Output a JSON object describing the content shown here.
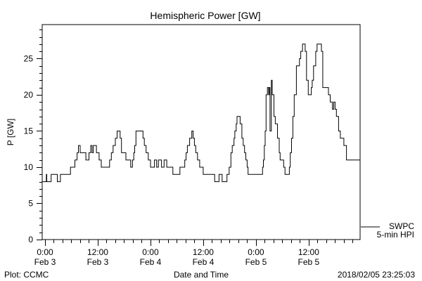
{
  "chart_data": {
    "type": "line",
    "title": "Hemispheric Power [GW]",
    "xlabel": "Date and Time",
    "ylabel": "P [GW]",
    "x_units": "hours since 2018-02-03 00:00",
    "xlim": [
      -0.64,
      71.7
    ],
    "ylim": [
      0,
      29.7
    ],
    "yticks": [
      0,
      5,
      10,
      15,
      20,
      25
    ],
    "xticks": [
      {
        "x": 0,
        "time": "0:00",
        "date": "Feb 3"
      },
      {
        "x": 12,
        "time": "12:00",
        "date": "Feb 3"
      },
      {
        "x": 24,
        "time": "0:00",
        "date": "Feb 4"
      },
      {
        "x": 36,
        "time": "12:00",
        "date": "Feb 4"
      },
      {
        "x": 48,
        "time": "0:00",
        "date": "Feb 5"
      },
      {
        "x": 60,
        "time": "12:00",
        "date": "Feb 5"
      }
    ],
    "legend": {
      "placement": "bottom-right outside",
      "line1": "SWPC",
      "line2": "5-min HPI"
    },
    "series": [
      {
        "name": "SWPC 5-min HPI",
        "step": true,
        "points": [
          [
            0,
            8
          ],
          [
            0.3,
            9
          ],
          [
            0.4,
            8
          ],
          [
            1.4,
            9
          ],
          [
            2.8,
            8
          ],
          [
            3.5,
            9
          ],
          [
            5.8,
            10
          ],
          [
            6.8,
            11
          ],
          [
            7.3,
            12
          ],
          [
            7.6,
            13
          ],
          [
            8.0,
            12
          ],
          [
            9.3,
            11
          ],
          [
            10.0,
            12
          ],
          [
            10.4,
            13
          ],
          [
            10.7,
            12
          ],
          [
            11.0,
            13
          ],
          [
            11.7,
            12
          ],
          [
            12.3,
            11
          ],
          [
            12.8,
            10
          ],
          [
            14.7,
            11
          ],
          [
            15.1,
            12
          ],
          [
            15.5,
            13
          ],
          [
            16.0,
            14
          ],
          [
            16.4,
            15
          ],
          [
            17.1,
            14
          ],
          [
            17.4,
            12
          ],
          [
            18.4,
            11
          ],
          [
            19.5,
            10
          ],
          [
            19.9,
            11
          ],
          [
            20.2,
            12
          ],
          [
            20.4,
            13
          ],
          [
            20.7,
            15
          ],
          [
            22.3,
            14
          ],
          [
            22.6,
            13
          ],
          [
            23.0,
            12
          ],
          [
            23.5,
            11
          ],
          [
            24.0,
            10
          ],
          [
            24.9,
            11
          ],
          [
            25.4,
            10
          ],
          [
            25.8,
            11
          ],
          [
            26.5,
            10
          ],
          [
            27.1,
            11
          ],
          [
            27.7,
            10
          ],
          [
            29.1,
            9
          ],
          [
            30.7,
            10
          ],
          [
            31.8,
            11
          ],
          [
            32.1,
            12
          ],
          [
            32.4,
            13
          ],
          [
            32.9,
            14
          ],
          [
            33.4,
            15
          ],
          [
            33.7,
            14
          ],
          [
            34.0,
            13
          ],
          [
            34.3,
            12
          ],
          [
            34.7,
            11
          ],
          [
            35.2,
            10
          ],
          [
            36.0,
            9
          ],
          [
            38.6,
            8
          ],
          [
            39.6,
            9
          ],
          [
            40.3,
            8
          ],
          [
            41.4,
            9
          ],
          [
            41.9,
            10
          ],
          [
            42.3,
            12
          ],
          [
            42.6,
            13
          ],
          [
            43.0,
            14
          ],
          [
            43.2,
            15
          ],
          [
            43.5,
            16
          ],
          [
            43.7,
            17
          ],
          [
            44.4,
            16
          ],
          [
            44.8,
            14
          ],
          [
            45.1,
            13
          ],
          [
            45.4,
            12
          ],
          [
            45.7,
            11
          ],
          [
            46.0,
            10
          ],
          [
            46.2,
            9
          ],
          [
            49.5,
            10
          ],
          [
            49.7,
            11
          ],
          [
            49.9,
            13
          ],
          [
            50.1,
            15
          ],
          [
            50.3,
            20
          ],
          [
            50.6,
            21
          ],
          [
            50.9,
            20
          ],
          [
            51.0,
            21
          ],
          [
            51.2,
            15
          ],
          [
            51.5,
            22
          ],
          [
            51.7,
            20
          ],
          [
            52.1,
            17
          ],
          [
            52.4,
            16
          ],
          [
            52.9,
            14
          ],
          [
            53.3,
            12
          ],
          [
            53.5,
            11
          ],
          [
            54.3,
            10
          ],
          [
            54.6,
            9
          ],
          [
            55.6,
            10
          ],
          [
            55.8,
            12
          ],
          [
            56.1,
            14
          ],
          [
            56.4,
            17
          ],
          [
            56.7,
            20
          ],
          [
            57.2,
            24
          ],
          [
            57.9,
            25
          ],
          [
            58.2,
            26
          ],
          [
            58.6,
            27
          ],
          [
            59.2,
            26
          ],
          [
            59.5,
            22
          ],
          [
            59.9,
            20
          ],
          [
            60.6,
            21
          ],
          [
            60.8,
            22
          ],
          [
            61.1,
            24
          ],
          [
            61.6,
            26
          ],
          [
            61.9,
            27
          ],
          [
            62.9,
            26
          ],
          [
            63.2,
            21
          ],
          [
            64.5,
            20
          ],
          [
            64.9,
            19
          ],
          [
            65.4,
            18
          ],
          [
            65.7,
            19
          ],
          [
            66.0,
            18
          ],
          [
            66.3,
            17
          ],
          [
            66.8,
            15
          ],
          [
            67.2,
            14
          ],
          [
            68.0,
            13
          ],
          [
            68.6,
            11
          ],
          [
            71.7,
            11
          ]
        ]
      }
    ]
  },
  "footer": {
    "left": "Plot: CCMC",
    "right": "2018/02/05 23:25:03"
  }
}
